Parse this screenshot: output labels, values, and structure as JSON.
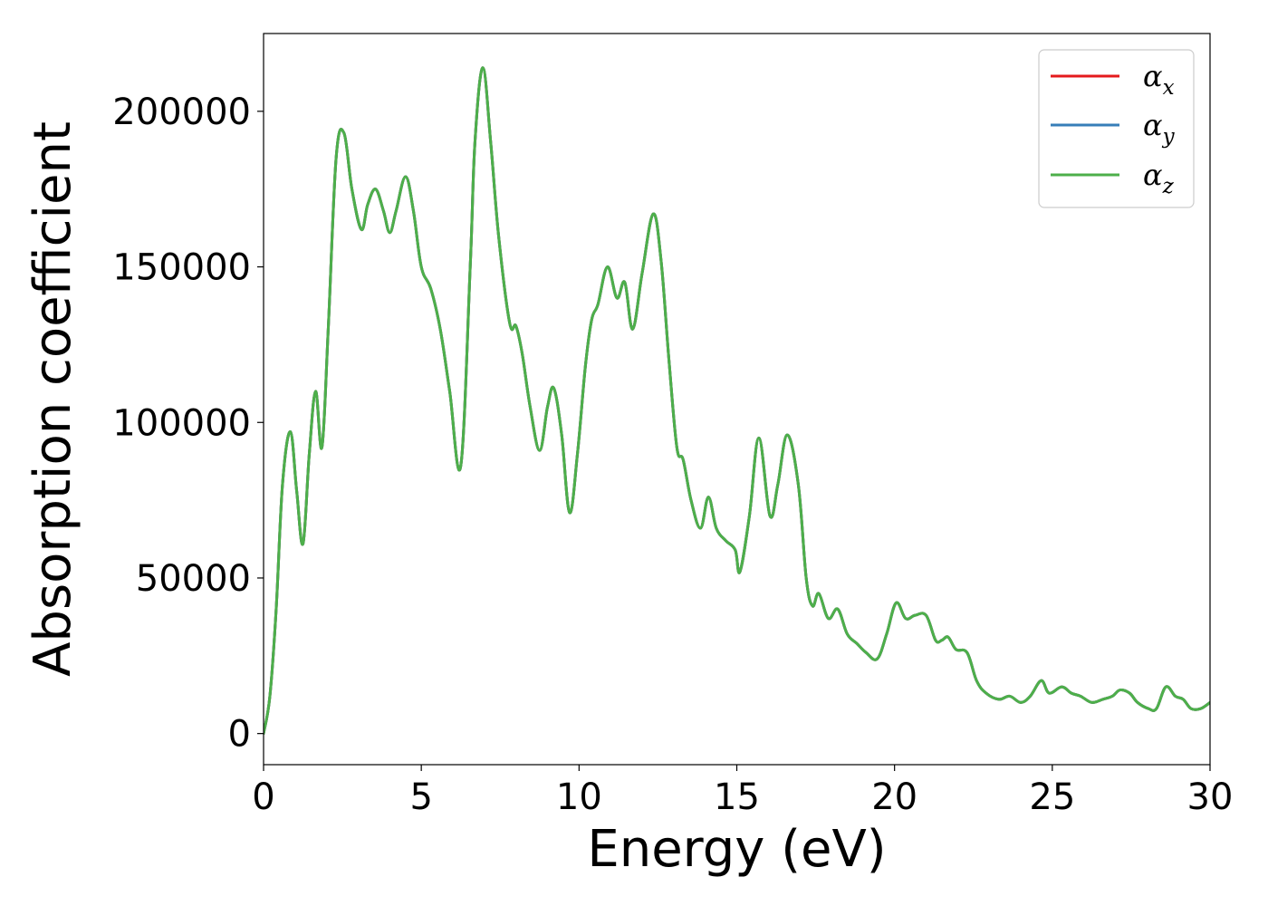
{
  "chart_data": {
    "type": "line",
    "title": "",
    "xlabel": "Energy (eV)",
    "ylabel": "Absorption coefficient",
    "xlim": [
      0,
      30
    ],
    "ylim": [
      -10000,
      225000
    ],
    "xticks": [
      0,
      5,
      10,
      15,
      20,
      25,
      30
    ],
    "yticks": [
      0,
      50000,
      100000,
      150000,
      200000
    ],
    "grid": false,
    "legend_position": "top-right",
    "series": [
      {
        "name": "α",
        "subscript": "x",
        "color": "#e41a1c"
      },
      {
        "name": "α",
        "subscript": "y",
        "color": "#377eb8"
      },
      {
        "name": "α",
        "subscript": "z",
        "color": "#4daf4a"
      }
    ],
    "x": [
      0,
      0.2,
      0.4,
      0.6,
      0.85,
      1.05,
      1.25,
      1.45,
      1.65,
      1.85,
      2.05,
      2.3,
      2.55,
      2.8,
      3.1,
      3.3,
      3.55,
      3.8,
      4.0,
      4.2,
      4.5,
      4.75,
      5.0,
      5.3,
      5.6,
      5.9,
      6.25,
      6.55,
      6.7,
      6.95,
      7.2,
      7.45,
      7.8,
      8.0,
      8.2,
      8.45,
      8.75,
      9.0,
      9.2,
      9.45,
      9.7,
      9.95,
      10.2,
      10.4,
      10.6,
      10.9,
      11.2,
      11.45,
      11.7,
      12.0,
      12.35,
      12.6,
      12.85,
      13.1,
      13.3,
      13.55,
      13.85,
      14.1,
      14.35,
      14.65,
      14.95,
      15.1,
      15.4,
      15.7,
      16.05,
      16.3,
      16.6,
      16.95,
      17.2,
      17.4,
      17.6,
      17.9,
      18.2,
      18.5,
      18.8,
      19.1,
      19.45,
      19.75,
      20.05,
      20.35,
      20.65,
      21.0,
      21.3,
      21.5,
      21.7,
      21.95,
      22.3,
      22.6,
      22.9,
      23.3,
      23.65,
      24.0,
      24.3,
      24.65,
      24.9,
      25.3,
      25.6,
      25.9,
      26.25,
      26.6,
      26.9,
      27.15,
      27.45,
      27.7,
      28.05,
      28.3,
      28.6,
      28.9,
      29.15,
      29.4,
      29.7,
      30.0
    ],
    "y_values": [
      0,
      12000,
      40000,
      80000,
      97000,
      78000,
      61000,
      90000,
      110000,
      92000,
      130000,
      185000,
      193000,
      175000,
      162000,
      170000,
      175000,
      168000,
      161000,
      168000,
      179000,
      168000,
      150000,
      143000,
      130000,
      110000,
      86000,
      150000,
      190000,
      214000,
      190000,
      160000,
      132000,
      131000,
      122000,
      105000,
      91000,
      105000,
      111000,
      96000,
      71000,
      90000,
      118000,
      133000,
      138000,
      150000,
      140000,
      145000,
      130000,
      148000,
      167000,
      152000,
      120000,
      92000,
      88000,
      75000,
      66000,
      76000,
      66000,
      62000,
      59000,
      52000,
      70000,
      95000,
      70000,
      80000,
      96000,
      80000,
      50000,
      41000,
      45000,
      37000,
      40000,
      32000,
      29000,
      26000,
      24000,
      32000,
      42000,
      37000,
      38000,
      38000,
      30000,
      30000,
      31000,
      27000,
      26000,
      17000,
      13000,
      11000,
      12000,
      10000,
      12000,
      17000,
      13000,
      15000,
      13000,
      12000,
      10000,
      11000,
      12000,
      14000,
      13000,
      10000,
      8000,
      8000,
      15000,
      12000,
      11000,
      8000,
      8000,
      10000
    ]
  }
}
